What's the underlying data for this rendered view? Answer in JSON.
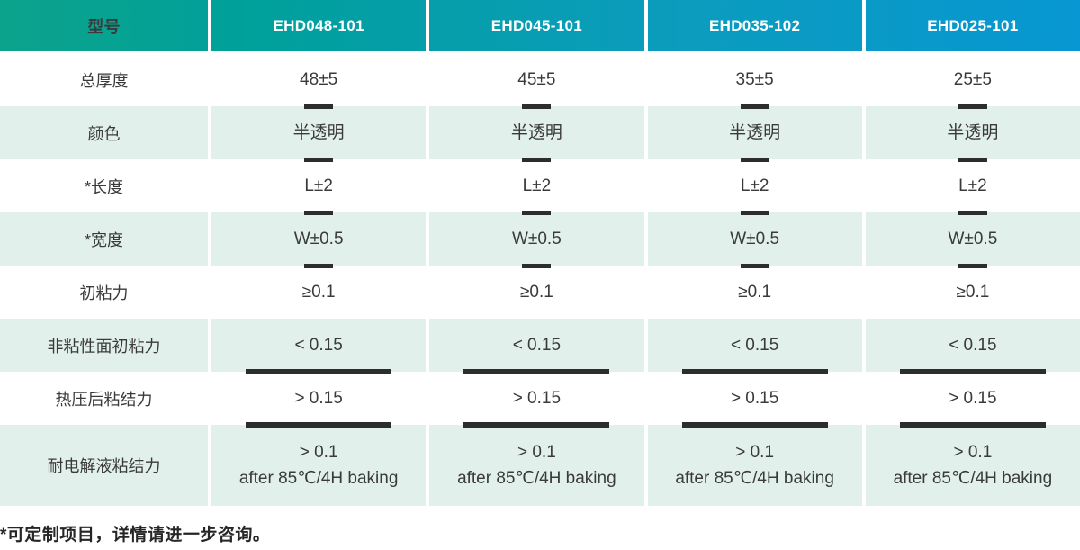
{
  "table": {
    "header": {
      "label": "型号",
      "models": [
        "EHD048-101",
        "EHD045-101",
        "EHD035-102",
        "EHD025-101"
      ]
    },
    "rows": [
      {
        "label": "总厚度",
        "tick": "short",
        "values": [
          "48±5",
          "45±5",
          "35±5",
          "25±5"
        ]
      },
      {
        "label": "颜色",
        "tick": "short",
        "values": [
          "半透明",
          "半透明",
          "半透明",
          "半透明"
        ]
      },
      {
        "label": "*长度",
        "tick": "short",
        "values": [
          "L±2",
          "L±2",
          "L±2",
          "L±2"
        ]
      },
      {
        "label": "*宽度",
        "tick": "short",
        "values": [
          "W±0.5",
          "W±0.5",
          "W±0.5",
          "W±0.5"
        ]
      },
      {
        "label": "初粘力",
        "tick": "none",
        "values": [
          "≥0.1",
          "≥0.1",
          "≥0.1",
          "≥0.1"
        ]
      },
      {
        "label": "非粘性面初粘力",
        "tick": "long",
        "values": [
          "< 0.15",
          "< 0.15",
          "< 0.15",
          "< 0.15"
        ]
      },
      {
        "label": "热压后粘结力",
        "tick": "long",
        "values": [
          "> 0.15",
          "> 0.15",
          "> 0.15",
          "> 0.15"
        ]
      },
      {
        "label": "耐电解液粘结力",
        "tick": "none",
        "values": [
          [
            "> 0.1",
            "after 85℃/4H baking"
          ],
          [
            "> 0.1",
            "after 85℃/4H baking"
          ],
          [
            "> 0.1",
            "after 85℃/4H baking"
          ],
          [
            "> 0.1",
            "after 85℃/4H baking"
          ]
        ]
      }
    ],
    "footnote": "*可定制项目，详情请进一步咨询。"
  },
  "colors": {
    "header_gradient_start": "#0ca38b",
    "header_gradient_end": "#0897d2",
    "row_alt_background": "#e2f0eb",
    "text": "#3a3a3a",
    "tick_mark": "#2d2d2d",
    "header_text": "#ffffff"
  }
}
